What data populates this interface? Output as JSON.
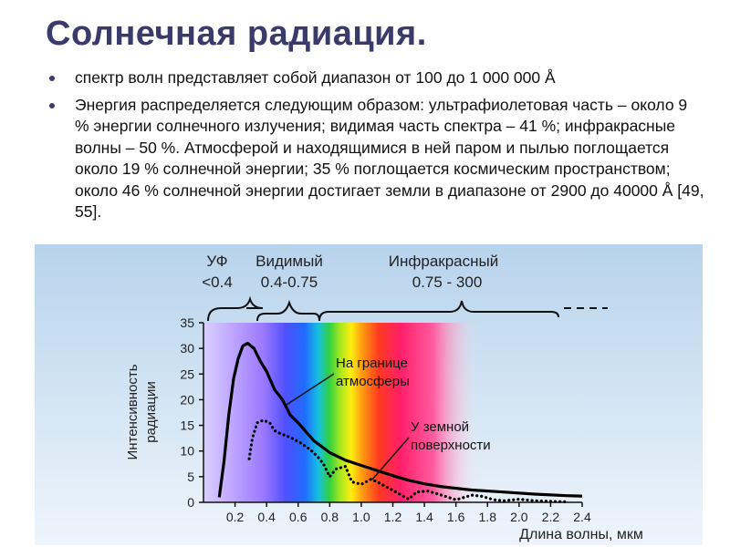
{
  "slide": {
    "title": "Солнечная радиация.",
    "bullets": [
      "спектр волн представляет собой диапазон от 100 до 1 000 000 Å",
      "Энергия распределяется следующим образом: ультрафиолетовая часть – около 9 % энергии солнечного излучения; видимая часть спектра – 41 %; инфракрасные волны – 50 %. Атмосферой и находящимися в ней паром и пылью поглощается около 19 % солнечной энергии; 35 % поглощается космическим пространством; около 46 % солнечной энергии достигает земли в диапазоне от 2900 до 40000 Å [49, 55]."
    ]
  },
  "colors": {
    "title": "#3b3b6b",
    "panel_background": "#bcd8ee",
    "uv": "#b090ff",
    "visible_start": "#3030ff",
    "infrared": "#ff1a78"
  },
  "chart_data": {
    "type": "line",
    "xlabel": "Длина волны, мкм",
    "ylabel": "Интенсивность радиации",
    "xlim": [
      0.0,
      2.4
    ],
    "ylim": [
      0,
      35
    ],
    "xticks": [
      "0.2",
      "0.4",
      "0.6",
      "0.8",
      "1.0",
      "1.2",
      "1.4",
      "1.6",
      "1.8",
      "2.0",
      "2.2",
      "2.4"
    ],
    "yticks": [
      "0",
      "5",
      "10",
      "15",
      "20",
      "25",
      "30",
      "35"
    ],
    "grid": false,
    "bands": [
      {
        "name": "УФ",
        "range_label": "<0.4"
      },
      {
        "name": "Видимый",
        "range_label": "0.4-0.75"
      },
      {
        "name": "Инфракрасный",
        "range_label": "0.75 - 300"
      }
    ],
    "series": [
      {
        "name": "На границе атмосферы",
        "style": "solid",
        "x": [
          0.1,
          0.13,
          0.16,
          0.19,
          0.22,
          0.25,
          0.28,
          0.32,
          0.36,
          0.4,
          0.45,
          0.5,
          0.55,
          0.6,
          0.7,
          0.8,
          0.9,
          1.0,
          1.1,
          1.2,
          1.3,
          1.4,
          1.5,
          1.7,
          1.9,
          2.1,
          2.3,
          2.4
        ],
        "y": [
          1.0,
          8.0,
          17.0,
          24.0,
          28.0,
          30.5,
          31.0,
          30.0,
          27.5,
          25.5,
          22.0,
          20.0,
          17.0,
          15.5,
          12.0,
          9.7,
          8.2,
          7.2,
          6.2,
          5.2,
          4.3,
          3.6,
          3.1,
          2.4,
          2.0,
          1.6,
          1.3,
          1.2
        ]
      },
      {
        "name": "У земной поверхности",
        "style": "dotted",
        "x": [
          0.29,
          0.31,
          0.34,
          0.38,
          0.42,
          0.45,
          0.48,
          0.52,
          0.56,
          0.62,
          0.68,
          0.72,
          0.76,
          0.8,
          0.84,
          0.9,
          0.94,
          1.0,
          1.06,
          1.1,
          1.16,
          1.22,
          1.3,
          1.35,
          1.42,
          1.5,
          1.6,
          1.7,
          1.76,
          1.84,
          1.9,
          2.0,
          2.1,
          2.2,
          2.3
        ],
        "y": [
          8.5,
          12.5,
          15.5,
          16.0,
          15.5,
          14.0,
          13.5,
          13.0,
          12.5,
          11.5,
          10.2,
          9.0,
          7.5,
          5.0,
          6.5,
          7.0,
          4.0,
          3.5,
          4.5,
          4.0,
          3.0,
          2.0,
          0.6,
          2.0,
          2.2,
          1.5,
          0.5,
          1.4,
          1.2,
          0.5,
          0.3,
          0.6,
          0.3,
          0.2,
          0.1
        ]
      }
    ],
    "annotations": [
      "На границе атмосферы",
      "У земной поверхности"
    ]
  }
}
